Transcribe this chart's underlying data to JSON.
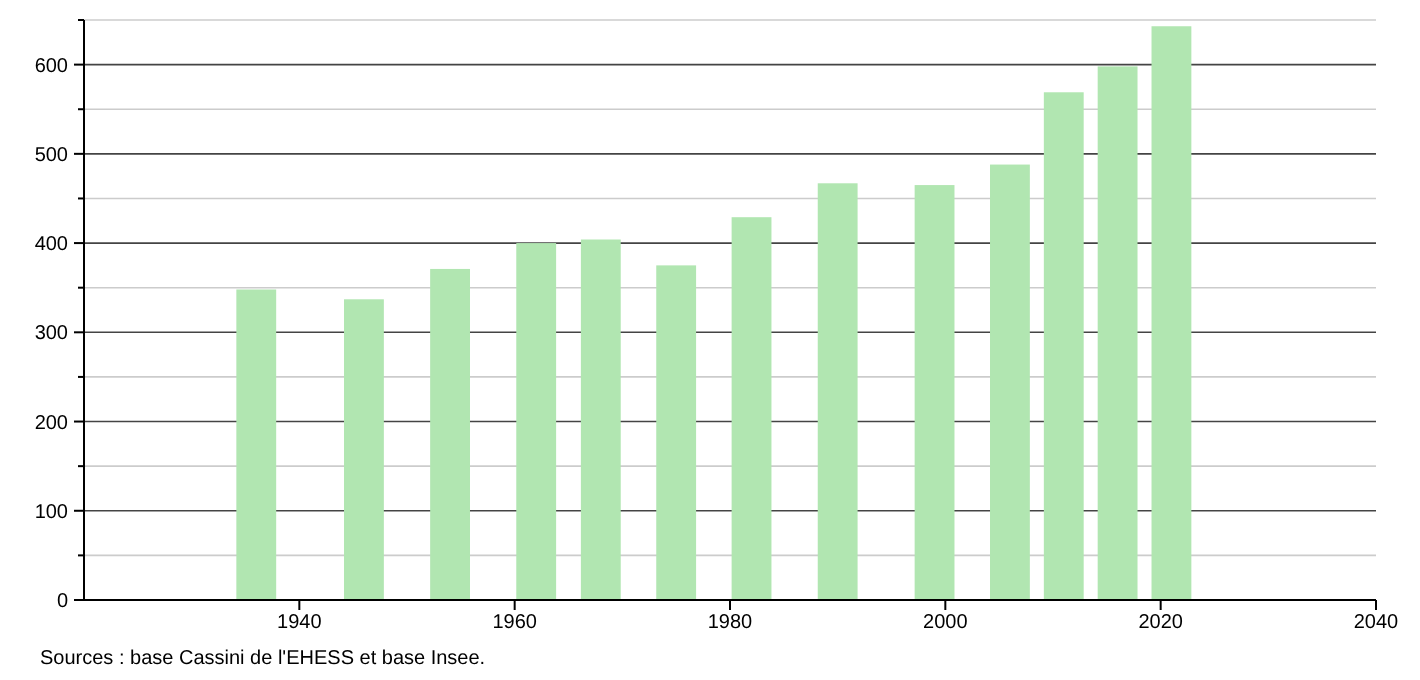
{
  "chart_data": {
    "type": "bar",
    "x": [
      1936,
      1946,
      1954,
      1962,
      1968,
      1975,
      1982,
      1990,
      1999,
      2006,
      2011,
      2016,
      2021
    ],
    "values": [
      348,
      337,
      371,
      400,
      404,
      375,
      429,
      467,
      465,
      488,
      569,
      598,
      643
    ],
    "color": "#b1e6b1",
    "xlim": [
      1920,
      2040
    ],
    "xticks": [
      1940,
      1960,
      1980,
      2000,
      2020,
      2040
    ],
    "ylim": [
      0,
      650
    ],
    "yticks": [
      0,
      {
        "value": 50,
        "label": null
      },
      100,
      {
        "value": 150,
        "label": null
      },
      200,
      {
        "value": 250,
        "label": null
      },
      300,
      {
        "value": 350,
        "label": null
      },
      400,
      {
        "value": 450,
        "label": null
      },
      500,
      {
        "value": 550,
        "label": null
      },
      600,
      {
        "value": 650,
        "label": null
      }
    ],
    "grid": "y",
    "annotations": [
      "Sources : base Cassini de l'EHESS et base Insee."
    ]
  }
}
